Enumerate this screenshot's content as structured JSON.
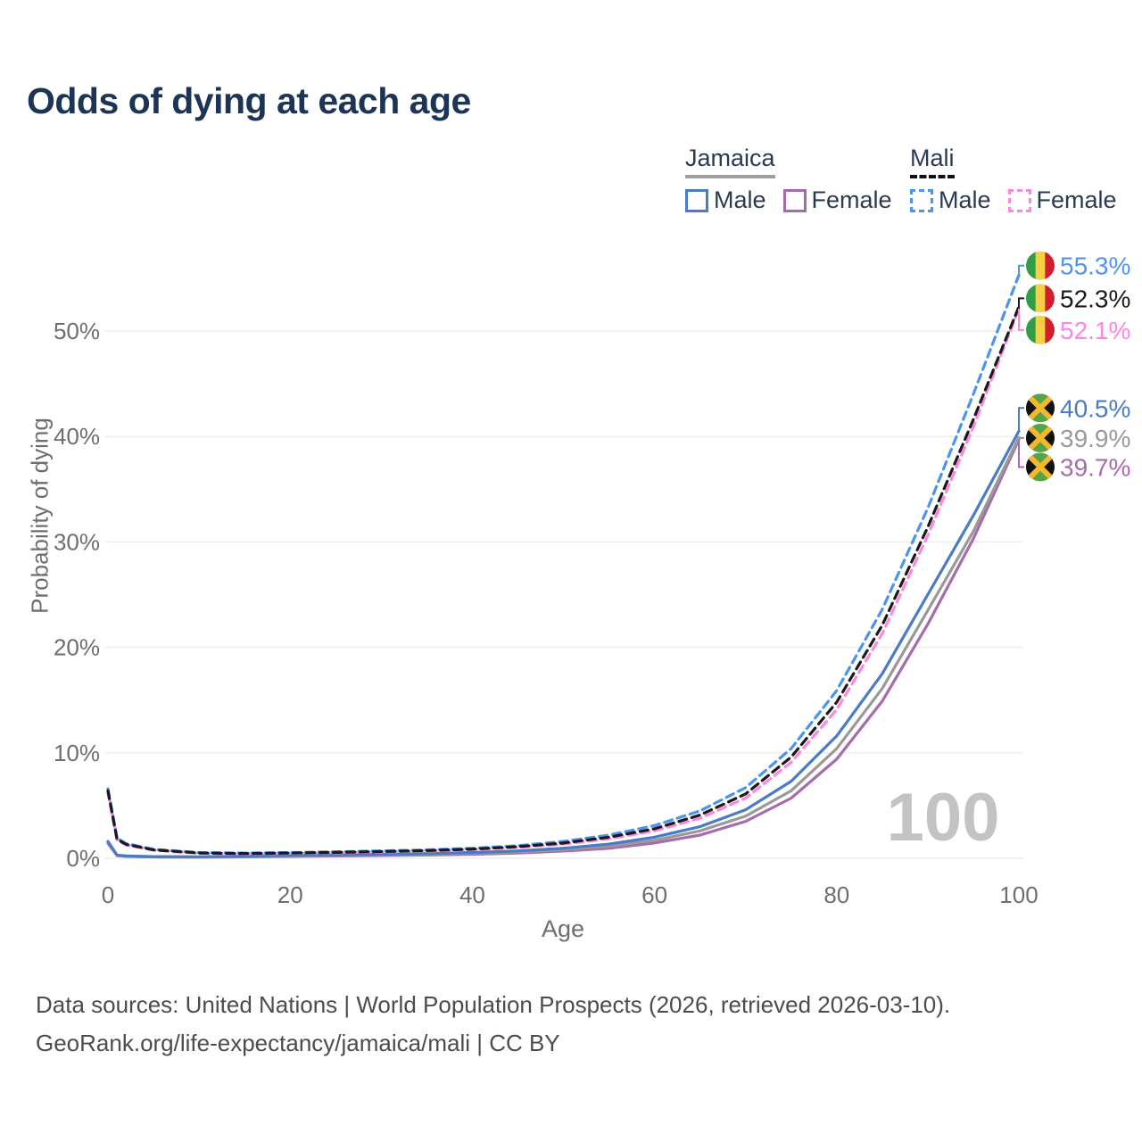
{
  "title": "Odds of dying at each age",
  "watermark_label": "100",
  "legend": {
    "groups": [
      {
        "title": "Jamaica",
        "items": [
          {
            "label": "Male"
          },
          {
            "label": "Female"
          }
        ]
      },
      {
        "title": "Mali",
        "items": [
          {
            "label": "Male"
          },
          {
            "label": "Female"
          }
        ]
      }
    ]
  },
  "footer": {
    "line1": "Data sources: United Nations | World Population Prospects (2026, retrieved 2026-03-10).",
    "line2": "GeoRank.org/life-expectancy/jamaica/mali | CC BY"
  },
  "colors": {
    "title": "#1c3557",
    "axis": "#6e6e6e",
    "grid": "#ececec",
    "watermark": "#c3c3c3",
    "legend_text": "#2b3a52",
    "jamaica_underline": "#9e9e9e",
    "mali_underline": "#111111",
    "mali_flag_green": "#2f9e44",
    "mali_flag_gold": "#f7ce46",
    "mali_flag_red": "#cf1f2f",
    "jamaica_flag_green": "#57a345",
    "jamaica_flag_black": "#121212",
    "jamaica_flag_gold": "#f2b92d"
  },
  "chart_data": {
    "type": "line",
    "title": "Odds of dying at each age",
    "xlabel": "Age",
    "ylabel": "Probability of dying",
    "xlim": [
      0,
      100
    ],
    "ylim": [
      0,
      57
    ],
    "xticks": [
      0,
      20,
      40,
      60,
      80,
      100
    ],
    "yticks": [
      0,
      10,
      20,
      30,
      40,
      50
    ],
    "grid": true,
    "legend_position": "top-right",
    "hover_age": "100",
    "ages": [
      0,
      1,
      2,
      5,
      10,
      15,
      20,
      25,
      30,
      35,
      40,
      45,
      50,
      55,
      60,
      65,
      70,
      75,
      80,
      85,
      90,
      95,
      100
    ],
    "series": [
      {
        "name": "Jamaica Male",
        "country": "Jamaica",
        "sex": "male",
        "style": "solid",
        "color": "#4a7bc4",
        "end_label": "40.5%",
        "values": [
          1.6,
          0.3,
          0.22,
          0.16,
          0.14,
          0.2,
          0.28,
          0.33,
          0.38,
          0.45,
          0.55,
          0.7,
          0.95,
          1.35,
          2.0,
          3.0,
          4.6,
          7.3,
          11.6,
          17.5,
          25.0,
          32.5,
          40.5
        ]
      },
      {
        "name": "Jamaica Both sexes",
        "country": "Jamaica",
        "sex": "both",
        "style": "solid",
        "color": "#999999",
        "end_label": "39.9%",
        "values": [
          1.5,
          0.27,
          0.2,
          0.14,
          0.12,
          0.17,
          0.23,
          0.27,
          0.31,
          0.37,
          0.46,
          0.6,
          0.8,
          1.15,
          1.7,
          2.6,
          4.0,
          6.4,
          10.4,
          16.1,
          23.5,
          31.0,
          39.9
        ]
      },
      {
        "name": "Jamaica Female",
        "country": "Jamaica",
        "sex": "female",
        "style": "solid",
        "color": "#a66bad",
        "end_label": "39.7%",
        "values": [
          1.4,
          0.25,
          0.18,
          0.13,
          0.11,
          0.14,
          0.18,
          0.22,
          0.26,
          0.3,
          0.38,
          0.5,
          0.68,
          0.95,
          1.45,
          2.2,
          3.5,
          5.7,
          9.4,
          14.9,
          22.2,
          30.3,
          39.7
        ]
      },
      {
        "name": "Mali Male",
        "country": "Mali",
        "sex": "male",
        "style": "dashed",
        "color": "#4d94f0",
        "end_label": "55.3%",
        "values": [
          6.6,
          1.9,
          1.4,
          0.85,
          0.55,
          0.5,
          0.55,
          0.62,
          0.7,
          0.8,
          0.95,
          1.2,
          1.6,
          2.2,
          3.1,
          4.5,
          6.7,
          10.4,
          15.9,
          23.6,
          33.2,
          44.0,
          55.3
        ]
      },
      {
        "name": "Mali Both sexes",
        "country": "Mali",
        "sex": "both",
        "style": "dashed",
        "color": "#1a1a1a",
        "end_label": "52.3%",
        "values": [
          6.4,
          1.8,
          1.32,
          0.8,
          0.5,
          0.45,
          0.5,
          0.56,
          0.64,
          0.73,
          0.87,
          1.1,
          1.45,
          2.0,
          2.8,
          4.1,
          6.1,
          9.6,
          14.8,
          22.1,
          31.4,
          41.6,
          52.3
        ]
      },
      {
        "name": "Mali Female",
        "country": "Mali",
        "sex": "female",
        "style": "dashed",
        "color": "#ff85e0",
        "end_label": "52.1%",
        "values": [
          6.2,
          1.72,
          1.25,
          0.77,
          0.47,
          0.42,
          0.47,
          0.53,
          0.6,
          0.69,
          0.82,
          1.03,
          1.35,
          1.85,
          2.6,
          3.8,
          5.7,
          9.1,
          14.1,
          21.3,
          30.6,
          40.9,
          52.1
        ]
      }
    ],
    "annotations": [
      {
        "flag": "mali",
        "text": "55.3%",
        "series": "Mali Male",
        "color": "#4d94f0",
        "value": 55.3,
        "label_pct": 56.2
      },
      {
        "flag": "mali",
        "text": "52.3%",
        "series": "Mali Both sexes",
        "color": "#1a1a1a",
        "value": 52.3,
        "label_pct": 53.1
      },
      {
        "flag": "mali",
        "text": "52.1%",
        "series": "Mali Female",
        "color": "#ff85e0",
        "value": 52.1,
        "label_pct": 50.1
      },
      {
        "flag": "jamaica",
        "text": "40.5%",
        "series": "Jamaica Male",
        "color": "#4a7bc4",
        "value": 40.5,
        "label_pct": 42.7
      },
      {
        "flag": "jamaica",
        "text": "39.9%",
        "series": "Jamaica Both sexes",
        "color": "#999999",
        "value": 39.9,
        "label_pct": 39.85
      },
      {
        "flag": "jamaica",
        "text": "39.7%",
        "series": "Jamaica Female",
        "color": "#a66bad",
        "value": 39.7,
        "label_pct": 37.1
      }
    ]
  }
}
